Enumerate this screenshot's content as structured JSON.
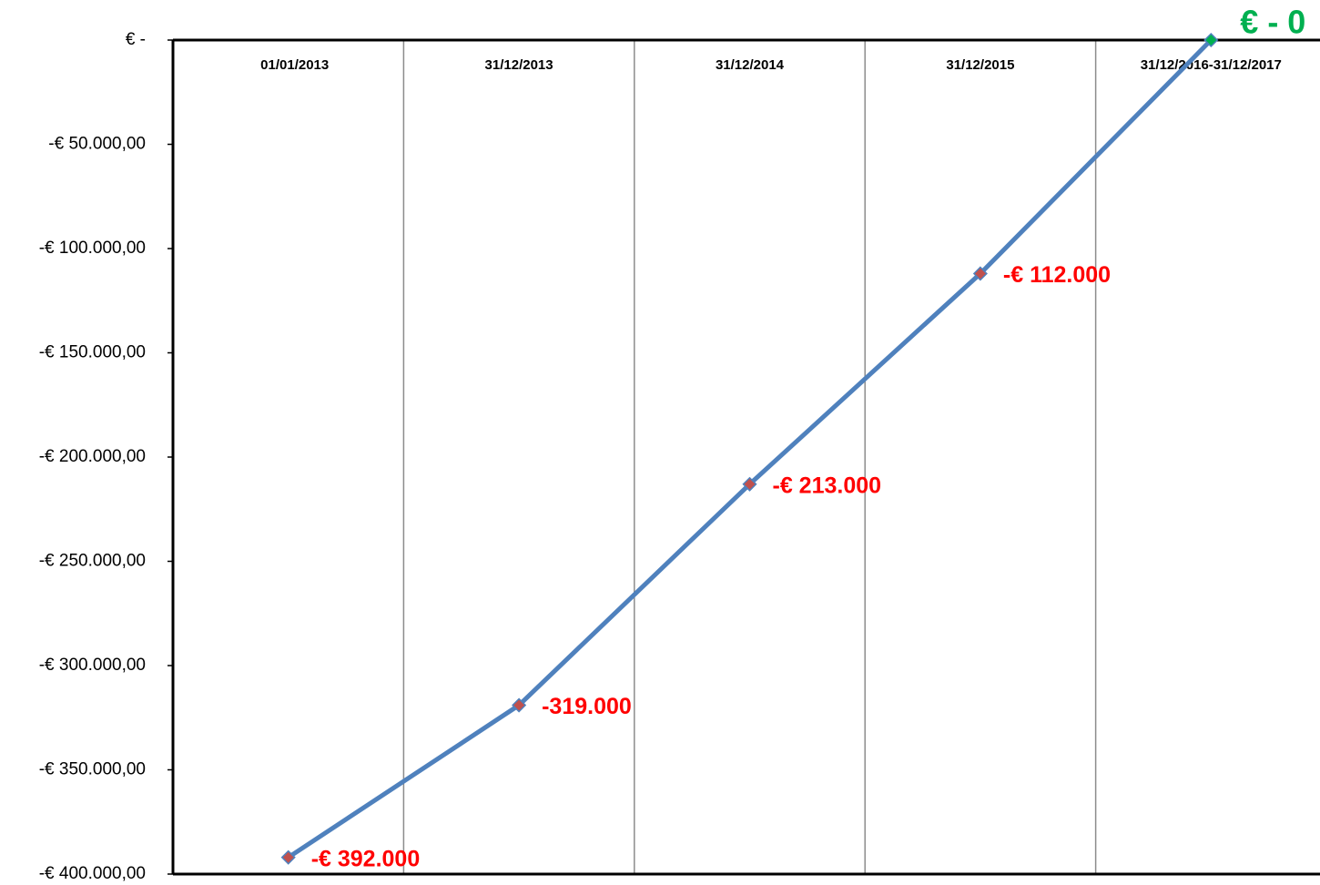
{
  "chart_data": {
    "type": "line",
    "categories": [
      "01/01/2013",
      "31/12/2013",
      "31/12/2014",
      "31/12/2015",
      "31/12/2016-31/12/2017"
    ],
    "series": [
      {
        "color": "#4f81bd",
        "marker_color": "#c0504d",
        "values": [
          -392000,
          -319000,
          -213000,
          -112000,
          0
        ],
        "value_labels": [
          "-€ 392.000",
          "-319.000",
          "-€ 213.000",
          "-€ 112.000",
          "€ - 0"
        ],
        "label_colors": [
          "#ff0000",
          "#ff0000",
          "#ff0000",
          "#ff0000",
          "#00b050"
        ]
      }
    ],
    "ylim": [
      -400000,
      0
    ],
    "yticks": [
      {
        "value": 0,
        "label": "€ -"
      },
      {
        "value": -50000,
        "label": "-€ 50.000,00"
      },
      {
        "value": -100000,
        "label": "-€ 100.000,00"
      },
      {
        "value": -150000,
        "label": "-€ 150.000,00"
      },
      {
        "value": -200000,
        "label": "-€ 200.000,00"
      },
      {
        "value": -250000,
        "label": "-€ 250.000,00"
      },
      {
        "value": -300000,
        "label": "-€ 300.000,00"
      },
      {
        "value": -350000,
        "label": "-€ 350.000,00"
      },
      {
        "value": -400000,
        "label": "-€ 400.000,00"
      }
    ],
    "grid": true
  }
}
